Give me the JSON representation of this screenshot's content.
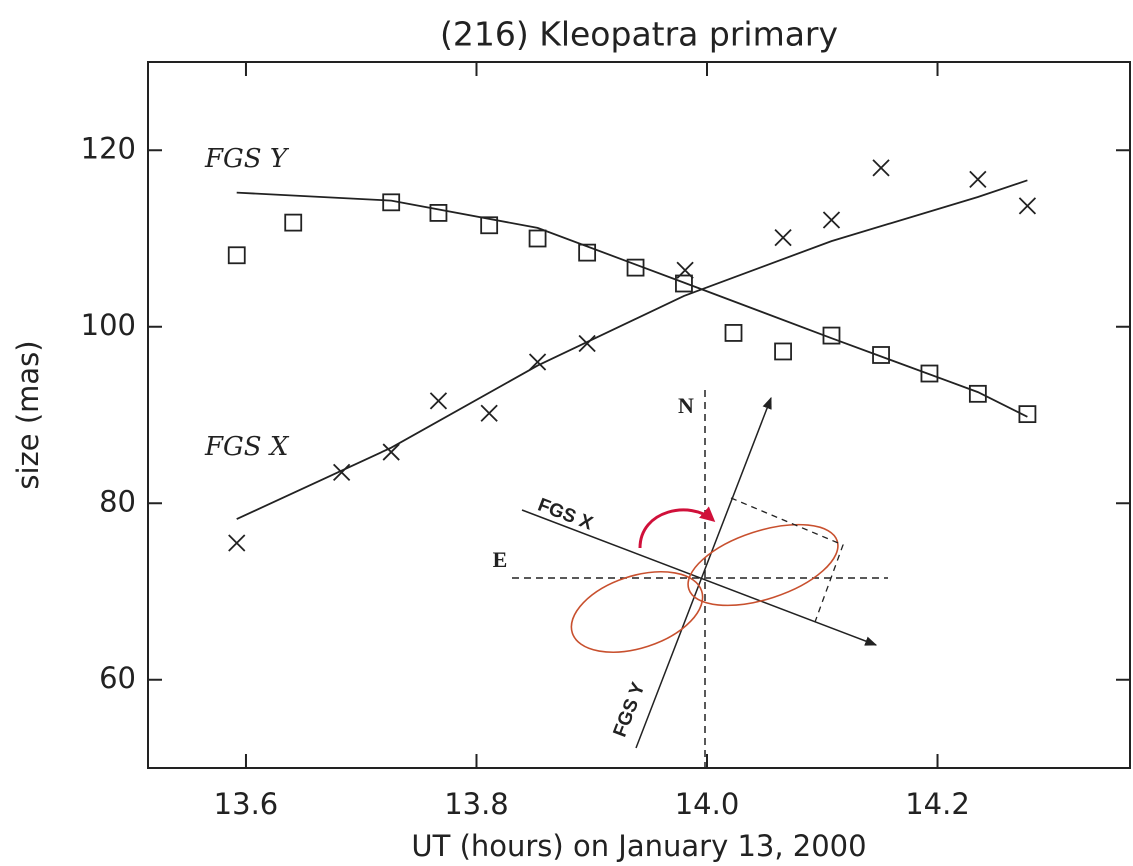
{
  "chart_data": {
    "type": "scatter",
    "title": "(216) Kleopatra primary",
    "x_label": "UT (hours) on January 13, 2000",
    "y_label": "size (mas)",
    "xlim": [
      13.515,
      14.367
    ],
    "ylim": [
      50,
      130
    ],
    "xticks": [
      {
        "value": 13.6,
        "label": "13.6"
      },
      {
        "value": 13.8,
        "label": "13.8"
      },
      {
        "value": 14.0,
        "label": "14.0"
      },
      {
        "value": 14.2,
        "label": "14.2"
      }
    ],
    "yticks": [
      60,
      80,
      100,
      120
    ],
    "series": [
      {
        "name": "FGS Y",
        "marker": "square",
        "color": "#222222",
        "x": [
          13.592,
          13.641,
          13.726,
          13.767,
          13.811,
          13.853,
          13.896,
          13.938,
          13.98,
          14.023,
          14.066,
          14.108,
          14.151,
          14.193,
          14.235,
          14.278
        ],
        "values": [
          108.1,
          111.8,
          114.1,
          112.9,
          111.5,
          110.0,
          108.4,
          106.7,
          104.9,
          99.3,
          97.2,
          99.0,
          96.8,
          94.7,
          92.4,
          90.1
        ],
        "fit": {
          "x": [
            13.592,
            13.726,
            13.853,
            13.98,
            14.108,
            14.235,
            14.278
          ],
          "values": [
            115.2,
            114.3,
            111.2,
            105.0,
            98.7,
            92.6,
            89.8
          ]
        }
      },
      {
        "name": "FGS X",
        "marker": "cross",
        "color": "#222222",
        "x": [
          13.592,
          13.683,
          13.726,
          13.767,
          13.811,
          13.853,
          13.896,
          13.981,
          14.066,
          14.108,
          14.151,
          14.235,
          14.278
        ],
        "values": [
          75.5,
          83.5,
          85.8,
          91.6,
          90.2,
          96.0,
          98.1,
          106.4,
          110.1,
          112.1,
          118.0,
          116.7,
          113.7
        ],
        "fit": {
          "x": [
            13.592,
            13.726,
            13.853,
            13.98,
            14.108,
            14.235,
            14.278
          ],
          "values": [
            78.2,
            86.3,
            95.6,
            103.5,
            109.7,
            114.7,
            116.6
          ]
        }
      }
    ],
    "inset": {
      "north": "N",
      "east": "E",
      "fgs_x": "FGS X",
      "fgs_y": "FGS Y"
    }
  }
}
